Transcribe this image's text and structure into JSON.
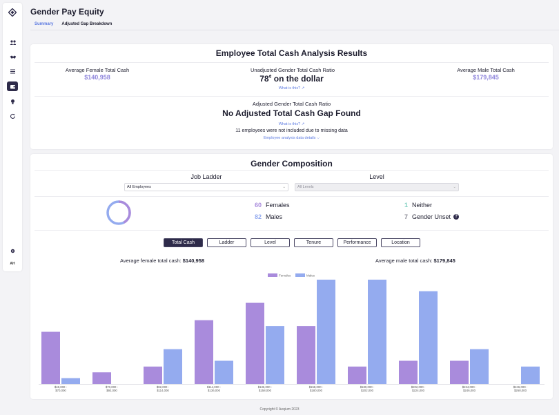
{
  "page": {
    "title": "Gender Pay Equity",
    "tabs": [
      {
        "label": "Summary",
        "active": true
      },
      {
        "label": "Adjusted Gap Breakdown",
        "active": false
      }
    ],
    "footer": "Copyright © Aeqium 2023"
  },
  "sidebar": {
    "items": [
      {
        "icon": "people-icon",
        "active": false
      },
      {
        "icon": "handshake-icon",
        "active": false
      },
      {
        "icon": "list-icon",
        "active": false
      },
      {
        "icon": "wallet-icon",
        "active": true
      },
      {
        "icon": "lightbulb-icon",
        "active": false
      },
      {
        "icon": "refresh-icon",
        "active": false
      }
    ],
    "bottom": [
      {
        "icon": "gear-icon"
      },
      {
        "label": "AH"
      }
    ]
  },
  "analysis": {
    "title": "Employee Total Cash Analysis Results",
    "female_label": "Average Female Total Cash",
    "female_value": "$140,958",
    "male_label": "Average Male Total Cash",
    "male_value": "$179,845",
    "unadjusted_label": "Unadjusted Gender Total Cash Ratio",
    "unadjusted_value_prefix": "78",
    "unadjusted_value_unit": "¢",
    "unadjusted_value_suffix": " on the dollar",
    "what_is_this": "What is this?",
    "adjusted_label": "Adjusted Gender Total Cash Ratio",
    "adjusted_value": "No Adjusted Total Cash Gap Found",
    "missing_note": "11 employees were not included due to missing data",
    "details_link": "Employee analysis data details"
  },
  "composition": {
    "title": "Gender Composition",
    "job_ladder_label": "Job Ladder",
    "job_ladder_value": "All Employees",
    "level_label": "Level",
    "level_placeholder": "All Levels",
    "females_count": "60",
    "females_label": "Females",
    "males_count": "82",
    "males_label": "Males",
    "neither_count": "1",
    "neither_label": "Neither",
    "unset_count": "7",
    "unset_label": "Gender Unset",
    "metric_tabs": [
      {
        "label": "Total Cash",
        "active": true
      },
      {
        "label": "Ladder",
        "active": false
      },
      {
        "label": "Level",
        "active": false
      },
      {
        "label": "Tenure",
        "active": false
      },
      {
        "label": "Performance",
        "active": false
      },
      {
        "label": "Location",
        "active": false
      }
    ],
    "avg_female_label": "Average female total cash: ",
    "avg_female_value": "$140,958",
    "avg_male_label": "Average male total cash: ",
    "avg_male_value": "$179,845"
  },
  "colors": {
    "female": "#a98bdc",
    "male": "#94abef",
    "accent": "#5b79e0",
    "dark": "#2e2b4a"
  },
  "chart_data": {
    "type": "bar",
    "categories": [
      [
        "$48,000 -",
        "$70,000"
      ],
      [
        "$70,000 -",
        "$92,000"
      ],
      [
        "$92,000 -",
        "$114,000"
      ],
      [
        "$114,000 -",
        "$136,000"
      ],
      [
        "$136,000 -",
        "$158,000"
      ],
      [
        "$158,000 -",
        "$180,000"
      ],
      [
        "$180,000 -",
        "$202,000"
      ],
      [
        "$202,000 -",
        "$224,000"
      ],
      [
        "$224,000 -",
        "$246,000"
      ],
      [
        "$246,000 -",
        "$268,000"
      ]
    ],
    "series": [
      {
        "name": "Females",
        "values": [
          9,
          2,
          3,
          11,
          14,
          10,
          3,
          4,
          4,
          0
        ]
      },
      {
        "name": "Males",
        "values": [
          1,
          0,
          6,
          4,
          10,
          18,
          18,
          16,
          6,
          3
        ]
      }
    ],
    "ylim": [
      0,
      18
    ],
    "legend": "top-center",
    "grid": false
  }
}
